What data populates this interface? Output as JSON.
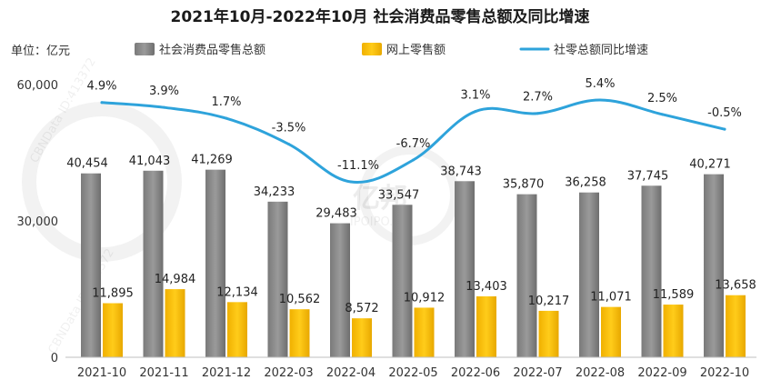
{
  "chart_data": {
    "type": "bar",
    "title": "2021年10月-2022年10月 社会消费品零售总额及同比增速",
    "ylabel": "单位：亿元",
    "ylim": [
      0,
      60000
    ],
    "yticks": [
      "0",
      "30,000",
      "60,000"
    ],
    "categories": [
      "2021-10",
      "2021-11",
      "2021-12",
      "2022-03",
      "2022-04",
      "2022-05",
      "2022-06",
      "2022-07",
      "2022-08",
      "2022-09",
      "2022-10"
    ],
    "series": [
      {
        "name": "社会消费品零售总额",
        "type": "bar",
        "color": "#8c8c8c",
        "values": [
          40454,
          41043,
          41269,
          34233,
          29483,
          33547,
          38743,
          35870,
          36258,
          37745,
          40271
        ],
        "labels": [
          "40,454",
          "41,043",
          "41,269",
          "34,233",
          "29,483",
          "33,547",
          "38,743",
          "35,870",
          "36,258",
          "37,745",
          "40,271"
        ]
      },
      {
        "name": "网上零售额",
        "type": "bar",
        "color": "#f5b800",
        "values": [
          11895,
          14984,
          12134,
          10562,
          8572,
          10912,
          13403,
          10217,
          11071,
          11589,
          13658
        ],
        "labels": [
          "11,895",
          "14,984",
          "12,134",
          "10,562",
          "8,572",
          "10,912",
          "13,403",
          "10,217",
          "11,071",
          "11,589",
          "13,658"
        ]
      },
      {
        "name": "社零总额同比增速",
        "type": "line",
        "color": "#2ea3db",
        "values": [
          4.9,
          3.9,
          1.7,
          -3.5,
          -11.1,
          -6.7,
          3.1,
          2.7,
          5.4,
          2.5,
          -0.5
        ],
        "labels": [
          "4.9%",
          "3.9%",
          "1.7%",
          "-3.5%",
          "-11.1%",
          "-6.7%",
          "3.1%",
          "2.7%",
          "5.4%",
          "2.5%",
          "-0.5%"
        ]
      }
    ],
    "legend_position": "top",
    "grid": false,
    "watermark": [
      "亿邦",
      "IPOIPO.CN",
      "CBNData ID:413372"
    ]
  }
}
